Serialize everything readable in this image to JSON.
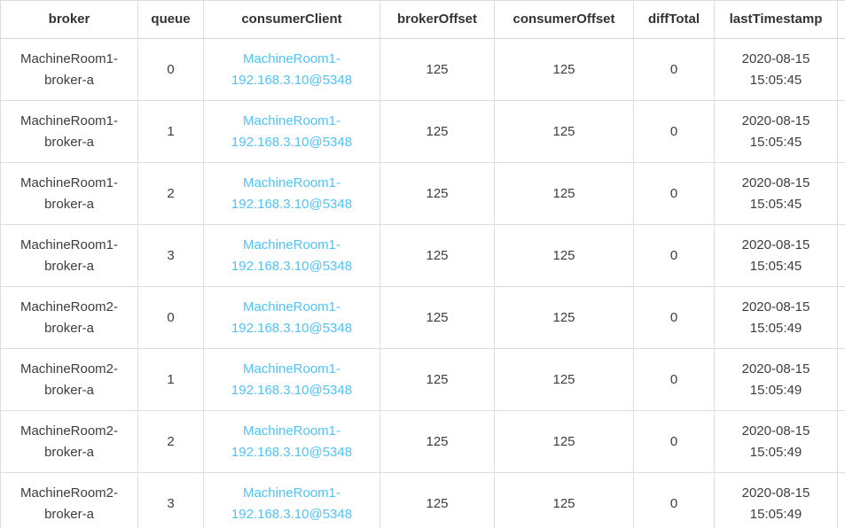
{
  "table": {
    "name": "consumer-connection-detail-table",
    "columns": [
      {
        "key": "broker",
        "label": "broker"
      },
      {
        "key": "queue",
        "label": "queue"
      },
      {
        "key": "consumerClient",
        "label": "consumerClient",
        "is_link": true
      },
      {
        "key": "brokerOffset",
        "label": "brokerOffset"
      },
      {
        "key": "consumerOffset",
        "label": "consumerOffset"
      },
      {
        "key": "diffTotal",
        "label": "diffTotal"
      },
      {
        "key": "lastTimestamp",
        "label": "lastTimestamp"
      }
    ],
    "rows": [
      {
        "broker": "MachineRoom1-broker-a",
        "queue": "0",
        "consumerClient": "MachineRoom1-192.168.3.10@5348",
        "brokerOffset": "125",
        "consumerOffset": "125",
        "diffTotal": "0",
        "lastTimestamp": "2020-08-15 15:05:45"
      },
      {
        "broker": "MachineRoom1-broker-a",
        "queue": "1",
        "consumerClient": "MachineRoom1-192.168.3.10@5348",
        "brokerOffset": "125",
        "consumerOffset": "125",
        "diffTotal": "0",
        "lastTimestamp": "2020-08-15 15:05:45"
      },
      {
        "broker": "MachineRoom1-broker-a",
        "queue": "2",
        "consumerClient": "MachineRoom1-192.168.3.10@5348",
        "brokerOffset": "125",
        "consumerOffset": "125",
        "diffTotal": "0",
        "lastTimestamp": "2020-08-15 15:05:45"
      },
      {
        "broker": "MachineRoom1-broker-a",
        "queue": "3",
        "consumerClient": "MachineRoom1-192.168.3.10@5348",
        "brokerOffset": "125",
        "consumerOffset": "125",
        "diffTotal": "0",
        "lastTimestamp": "2020-08-15 15:05:45"
      },
      {
        "broker": "MachineRoom2-broker-a",
        "queue": "0",
        "consumerClient": "MachineRoom1-192.168.3.10@5348",
        "brokerOffset": "125",
        "consumerOffset": "125",
        "diffTotal": "0",
        "lastTimestamp": "2020-08-15 15:05:49"
      },
      {
        "broker": "MachineRoom2-broker-a",
        "queue": "1",
        "consumerClient": "MachineRoom1-192.168.3.10@5348",
        "brokerOffset": "125",
        "consumerOffset": "125",
        "diffTotal": "0",
        "lastTimestamp": "2020-08-15 15:05:49"
      },
      {
        "broker": "MachineRoom2-broker-a",
        "queue": "2",
        "consumerClient": "MachineRoom1-192.168.3.10@5348",
        "brokerOffset": "125",
        "consumerOffset": "125",
        "diffTotal": "0",
        "lastTimestamp": "2020-08-15 15:05:49"
      },
      {
        "broker": "MachineRoom2-broker-a",
        "queue": "3",
        "consumerClient": "MachineRoom1-192.168.3.10@5348",
        "brokerOffset": "125",
        "consumerOffset": "125",
        "diffTotal": "0",
        "lastTimestamp": "2020-08-15 15:05:49"
      }
    ]
  },
  "colors": {
    "link": "#4fc3f7",
    "border": "#dddddd",
    "header_text": "#333333",
    "body_text": "#3d3d3d",
    "background": "#ffffff"
  }
}
